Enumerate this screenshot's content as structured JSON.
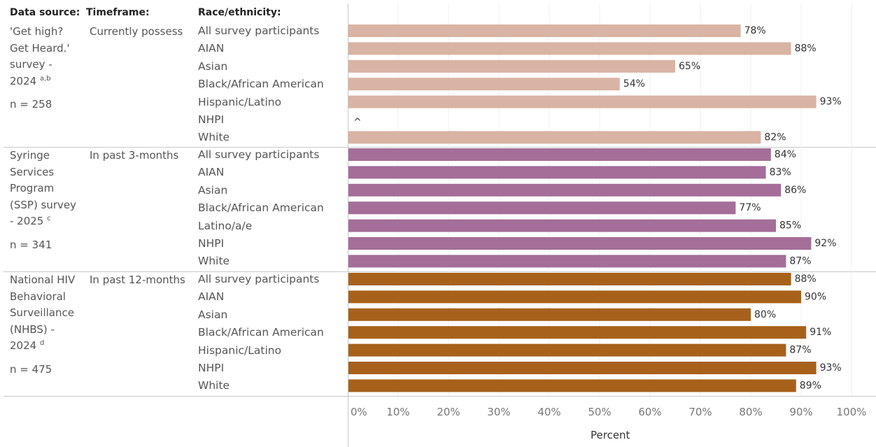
{
  "headers": {
    "source": "Data source:",
    "timeframe": "Timeframe:",
    "race": "Race/ethnicity:"
  },
  "groups": [
    {
      "source_lines": [
        "'Get high?",
        "Get Heard.'",
        "survey -"
      ],
      "source_year": "2024",
      "source_sup": "a,b",
      "n": "n = 258",
      "timeframe": "Currently possess",
      "color": "#d9b3a3"
    },
    {
      "source_lines": [
        "Syringe",
        "Services",
        "Program",
        "(SSP) survey"
      ],
      "source_year": "- 2025",
      "source_sup": "c",
      "n": "n = 341",
      "timeframe": "In past 3-months",
      "color": "#a46e98"
    },
    {
      "source_lines": [
        "National HIV",
        "Behavioral",
        "Surveillance",
        "(NHBS) -"
      ],
      "source_year": "2024",
      "source_sup": "d",
      "n": "n = 475",
      "timeframe": "In past 12-months",
      "color": "#a7611b"
    }
  ],
  "chart_data": {
    "type": "bar",
    "orientation": "horizontal",
    "xlabel": "Percent",
    "xlim": [
      0,
      100
    ],
    "x_ticks": [
      "0%",
      "10%",
      "20%",
      "30%",
      "40%",
      "50%",
      "60%",
      "70%",
      "80%",
      "90%",
      "100%"
    ],
    "vertical_grid": true,
    "groups": [
      {
        "categories": [
          "All survey participants",
          "AIAN",
          "Asian",
          "Black/African American",
          "Hispanic/Latino",
          "NHPI",
          "White"
        ],
        "values": [
          78,
          88,
          65,
          54,
          93,
          null,
          82
        ],
        "labels": [
          "78%",
          "88%",
          "65%",
          "54%",
          "93%",
          "^",
          "82%"
        ]
      },
      {
        "categories": [
          "All survey participants",
          "AIAN",
          "Asian",
          "Black/African American",
          "Latino/a/e",
          "NHPI",
          "White"
        ],
        "values": [
          84,
          83,
          86,
          77,
          85,
          92,
          87
        ],
        "labels": [
          "84%",
          "83%",
          "86%",
          "77%",
          "85%",
          "92%",
          "87%"
        ]
      },
      {
        "categories": [
          "All survey participants",
          "AIAN",
          "Asian",
          "Black/African American",
          "Hispanic/Latino",
          "NHPI",
          "White"
        ],
        "values": [
          88,
          90,
          80,
          91,
          87,
          93,
          89
        ],
        "labels": [
          "88%",
          "90%",
          "80%",
          "91%",
          "87%",
          "93%",
          "89%"
        ]
      }
    ]
  }
}
